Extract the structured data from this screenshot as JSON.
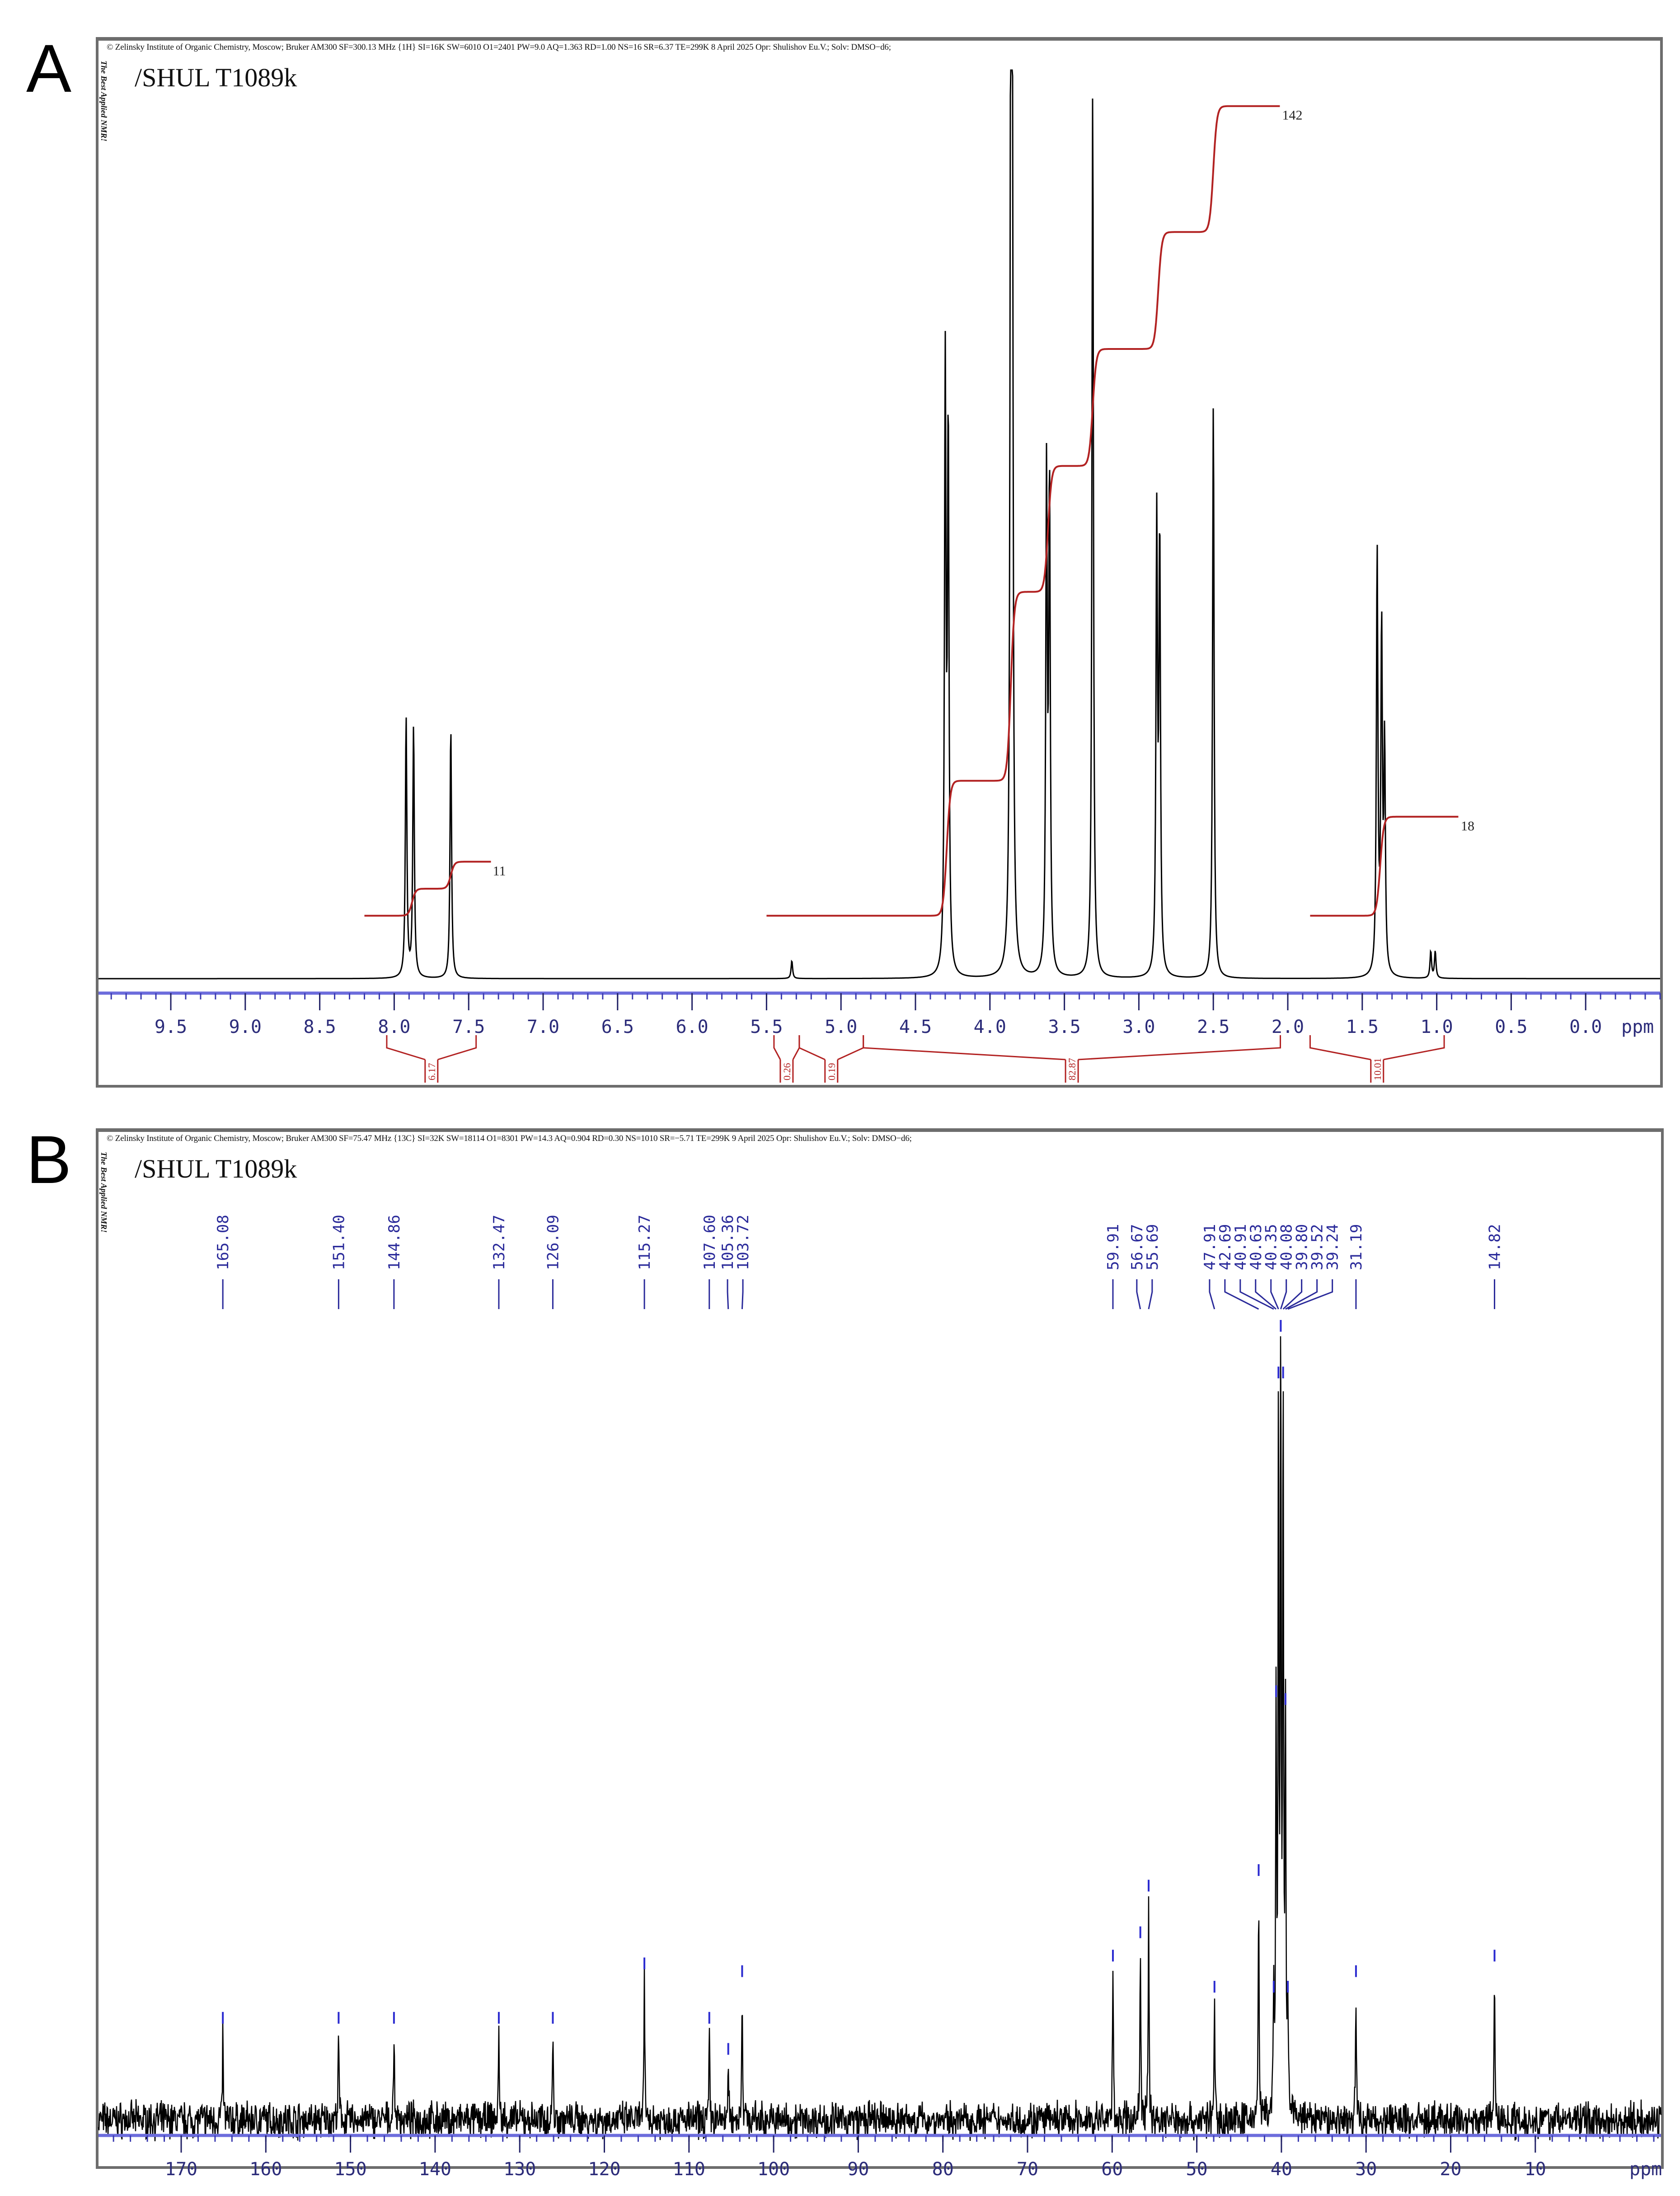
{
  "panels": [
    {
      "letter": "A",
      "header": "© Zelinsky Institute of Organic Chemistry, Moscow; Bruker AM300 SF=300.13 MHz {1H} SI=16K SW=6010 O1=2401 PW=9.0 AQ=1.363 RD=1.00 NS=16 SR=6.37 TE=299K  8 April 2025  Opr: Shulishov Eu.V.;  Solv: DMSO−d6;",
      "side_text": "The Best Applied NMR!",
      "sample": "/SHUL T1089k",
      "axis_unit": "ppm"
    },
    {
      "letter": "B",
      "header": "© Zelinsky Institute of Organic Chemistry, Moscow; Bruker AM300 SF=75.47 MHz {13C} SI=32K SW=18114 O1=8301 PW=14.3 AQ=0.904 RD=0.30 NS=1010 SR=−5.71 TE=299K  9 April 2025  Opr: Shulishov Eu.V.;  Solv: DMSO−d6;",
      "side_text": "The Best Applied NMR!",
      "sample": "/SHUL T1089k",
      "axis_unit": "ppm"
    }
  ],
  "chart_data": [
    {
      "type": "line",
      "title": "1H NMR spectrum, /SHUL T1089k (300.13 MHz, DMSO-d6)",
      "xlabel": "ppm",
      "ylabel": "",
      "xlim": [
        10.0,
        -0.5
      ],
      "x_ticks": [
        9.5,
        9.0,
        8.5,
        8.0,
        7.5,
        7.0,
        6.5,
        6.0,
        5.5,
        5.0,
        4.5,
        4.0,
        3.5,
        3.0,
        2.5,
        2.0,
        1.5,
        1.0,
        0.5,
        0.0
      ],
      "grid": false,
      "peaks": [
        {
          "ppm": 7.92,
          "rel_height": 0.29
        },
        {
          "ppm": 7.87,
          "rel_height": 0.28
        },
        {
          "ppm": 7.62,
          "rel_height": 0.28
        },
        {
          "ppm": 5.33,
          "rel_height": 0.02
        },
        {
          "ppm": 4.3,
          "rel_height": 0.67
        },
        {
          "ppm": 4.28,
          "rel_height": 0.6
        },
        {
          "ppm": 3.86,
          "rel_height": 1.0
        },
        {
          "ppm": 3.85,
          "rel_height": 0.93
        },
        {
          "ppm": 3.62,
          "rel_height": 0.55
        },
        {
          "ppm": 3.6,
          "rel_height": 0.54
        },
        {
          "ppm": 3.31,
          "rel_height": 0.99
        },
        {
          "ppm": 2.88,
          "rel_height": 0.5
        },
        {
          "ppm": 2.86,
          "rel_height": 0.48
        },
        {
          "ppm": 2.5,
          "rel_height": 0.64
        },
        {
          "ppm": 1.4,
          "rel_height": 0.47
        },
        {
          "ppm": 1.37,
          "rel_height": 0.38
        },
        {
          "ppm": 1.35,
          "rel_height": 0.25
        },
        {
          "ppm": 1.04,
          "rel_height": 0.03
        },
        {
          "ppm": 1.01,
          "rel_height": 0.03
        }
      ],
      "integral_curves": [
        {
          "range": [
            8.2,
            7.35
          ],
          "label": "11",
          "start": 0.07,
          "steps": [
            [
              7.88,
              0.1
            ],
            [
              7.62,
              0.13
            ]
          ]
        },
        {
          "range": [
            5.5,
            2.05
          ],
          "label": "142",
          "start": 0.07,
          "steps": [
            [
              4.29,
              0.22
            ],
            [
              3.86,
              0.43
            ],
            [
              3.61,
              0.57
            ],
            [
              3.31,
              0.7
            ],
            [
              2.87,
              0.83
            ],
            [
              2.5,
              0.97
            ]
          ]
        },
        {
          "range": [
            1.85,
            0.85
          ],
          "label": "18",
          "start": 0.07,
          "steps": [
            [
              1.38,
              0.18
            ]
          ]
        }
      ],
      "integrals": [
        {
          "from": 8.05,
          "to": 7.45,
          "value": "6.17"
        },
        {
          "from": 5.45,
          "to": 5.28,
          "value": "0.26"
        },
        {
          "from": 5.28,
          "to": 4.85,
          "value": "0.19"
        },
        {
          "from": 4.85,
          "to": 2.05,
          "value": "82.87"
        },
        {
          "from": 1.85,
          "to": 0.95,
          "value": "10.01"
        }
      ]
    },
    {
      "type": "line",
      "title": "13C NMR spectrum, /SHUL T1089k (75.47 MHz, DMSO-d6)",
      "xlabel": "ppm",
      "ylabel": "",
      "xlim": [
        180,
        -5
      ],
      "x_ticks": [
        170,
        160,
        150,
        140,
        130,
        120,
        110,
        100,
        90,
        80,
        70,
        60,
        50,
        40,
        30,
        20,
        10
      ],
      "grid": false,
      "peak_labels": [
        "165.08",
        "151.40",
        "144.86",
        "132.47",
        "126.09",
        "115.27",
        "107.60",
        "105.36",
        "103.72",
        "59.91",
        "56.67",
        "55.69",
        "47.91",
        "42.69",
        "40.91",
        "40.63",
        "40.35",
        "40.08",
        "39.80",
        "39.52",
        "39.24",
        "31.19",
        "14.82"
      ],
      "peaks": [
        {
          "ppm": 165.08,
          "rel_height": 0.11
        },
        {
          "ppm": 151.4,
          "rel_height": 0.11
        },
        {
          "ppm": 144.86,
          "rel_height": 0.11
        },
        {
          "ppm": 132.47,
          "rel_height": 0.11
        },
        {
          "ppm": 126.09,
          "rel_height": 0.11
        },
        {
          "ppm": 115.27,
          "rel_height": 0.18
        },
        {
          "ppm": 107.6,
          "rel_height": 0.11
        },
        {
          "ppm": 105.36,
          "rel_height": 0.07
        },
        {
          "ppm": 103.72,
          "rel_height": 0.17
        },
        {
          "ppm": 59.91,
          "rel_height": 0.19
        },
        {
          "ppm": 56.67,
          "rel_height": 0.22
        },
        {
          "ppm": 55.69,
          "rel_height": 0.28
        },
        {
          "ppm": 47.91,
          "rel_height": 0.15
        },
        {
          "ppm": 42.69,
          "rel_height": 0.3
        },
        {
          "ppm": 40.91,
          "rel_height": 0.15
        },
        {
          "ppm": 40.63,
          "rel_height": 0.53
        },
        {
          "ppm": 40.35,
          "rel_height": 0.94
        },
        {
          "ppm": 40.08,
          "rel_height": 1.0
        },
        {
          "ppm": 39.8,
          "rel_height": 0.94
        },
        {
          "ppm": 39.52,
          "rel_height": 0.52
        },
        {
          "ppm": 39.24,
          "rel_height": 0.15
        },
        {
          "ppm": 31.19,
          "rel_height": 0.17
        },
        {
          "ppm": 14.82,
          "rel_height": 0.19
        }
      ]
    }
  ]
}
